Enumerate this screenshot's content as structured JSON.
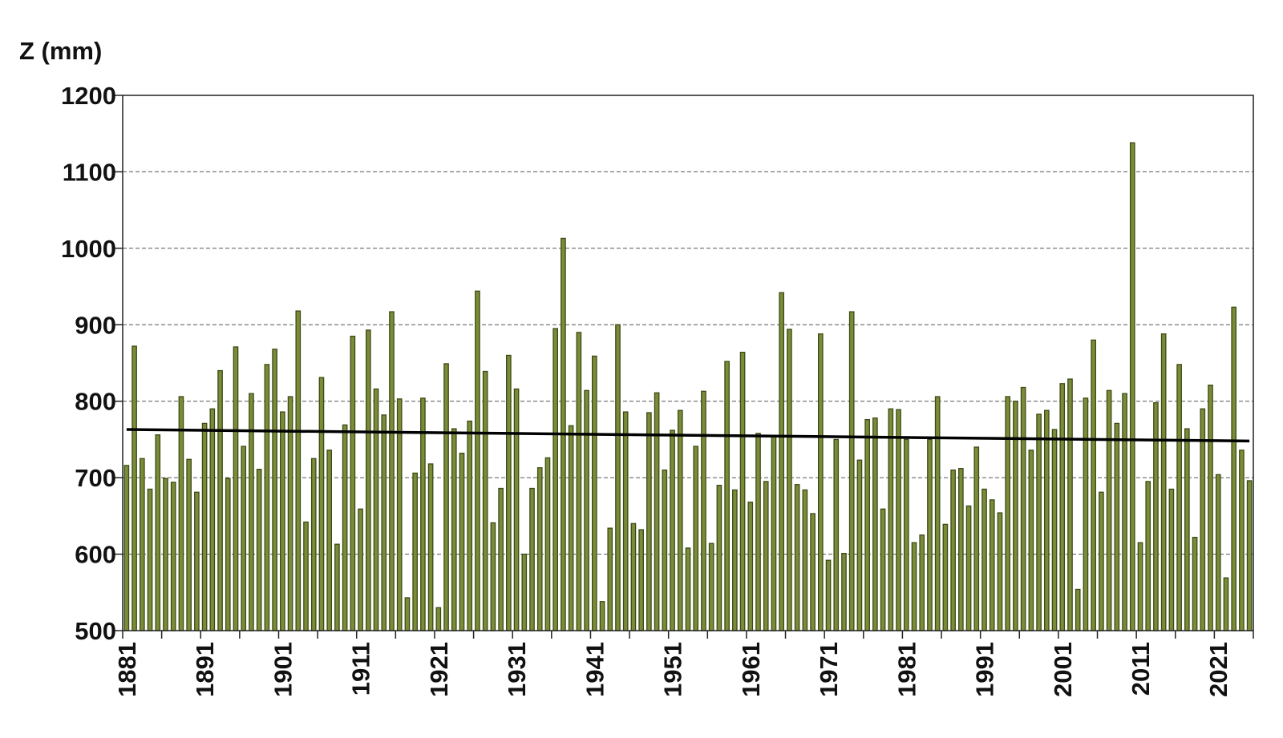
{
  "chart_data": {
    "type": "bar",
    "title": "",
    "xlabel": "",
    "ylabel": "Z (mm)",
    "ylim": [
      500,
      1200
    ],
    "yticks": [
      500,
      600,
      700,
      800,
      900,
      1000,
      1100,
      1200
    ],
    "grid": true,
    "x_start": 1881,
    "x_end": 2025,
    "xtick_labels": [
      "1881",
      "1891",
      "1901",
      "1911",
      "1921",
      "1931",
      "1941",
      "1951",
      "1961",
      "1971",
      "1981",
      "1991",
      "2001",
      "2011",
      "2021"
    ],
    "colors": {
      "bar_fill": "#7a8c38",
      "bar_edge": "#3d4a16",
      "trend": "#000000",
      "grid": "#555555"
    },
    "series": [
      {
        "values": [
          716,
          872,
          725,
          685,
          756,
          699,
          694,
          806,
          724,
          681,
          771,
          790,
          840,
          699,
          871,
          741,
          810,
          711,
          848,
          868,
          786,
          806,
          918,
          642,
          725,
          831,
          736,
          613,
          769,
          885,
          659,
          893,
          816,
          782,
          917,
          803,
          543,
          706,
          804,
          718,
          530,
          849,
          764,
          732,
          774,
          944,
          839,
          641,
          686,
          860,
          816,
          600,
          686,
          713,
          726,
          895,
          1013,
          768,
          890,
          814,
          859,
          538,
          634,
          900,
          786,
          640,
          632,
          785,
          811,
          710,
          762,
          788,
          608,
          741,
          813,
          614,
          690,
          852,
          684,
          864,
          668,
          758,
          695,
          755,
          942,
          894,
          691,
          684,
          653,
          888,
          592,
          750,
          601,
          917,
          723,
          776,
          778,
          659,
          790,
          789,
          750,
          615,
          625,
          750,
          806,
          639,
          710,
          712,
          663,
          740,
          685,
          671,
          654,
          806,
          800,
          818,
          736,
          783,
          788,
          763,
          823,
          829,
          554,
          804,
          880,
          681,
          814,
          771,
          810,
          1138,
          615,
          695,
          798,
          888,
          685,
          848,
          764,
          622,
          790,
          821,
          704,
          569,
          923,
          736,
          696
        ]
      }
    ],
    "trend_line": {
      "start": [
        1881,
        763
      ],
      "end": [
        2025,
        748
      ]
    }
  }
}
